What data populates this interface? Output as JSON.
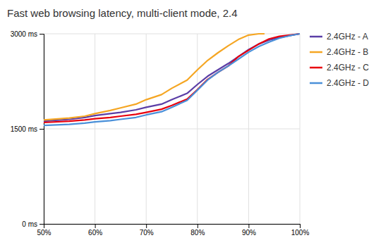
{
  "chart_data": {
    "type": "line",
    "title": "Fast web browsing latency, multi-client mode, 2.4",
    "xlim": [
      0.5,
      1.0
    ],
    "ylim": [
      0,
      3000
    ],
    "xticks": [
      {
        "value": 0.5,
        "label": "50%"
      },
      {
        "value": 0.6,
        "label": "60%"
      },
      {
        "value": 0.7,
        "label": "70%"
      },
      {
        "value": 0.8,
        "label": "80%"
      },
      {
        "value": 0.9,
        "label": "90%"
      },
      {
        "value": 1.0,
        "label": "100%"
      }
    ],
    "yticks": [
      {
        "value": 0,
        "label": "0 ms"
      },
      {
        "value": 1500,
        "label": "1500 ms"
      },
      {
        "value": 3000,
        "label": "3000 ms"
      }
    ],
    "grid": true,
    "legend": "right",
    "series": [
      {
        "name": "2.4GHz - A",
        "color": "#5b3ea6",
        "x": [
          0.5,
          0.55,
          0.58,
          0.6,
          0.63,
          0.65,
          0.68,
          0.7,
          0.73,
          0.75,
          0.78,
          0.8,
          0.82,
          0.84,
          0.86,
          0.88,
          0.9,
          0.92,
          0.94,
          0.96,
          0.98,
          1.0
        ],
        "values": [
          1620,
          1650,
          1680,
          1710,
          1740,
          1760,
          1800,
          1840,
          1890,
          1960,
          2060,
          2200,
          2330,
          2430,
          2530,
          2640,
          2750,
          2840,
          2900,
          2940,
          2970,
          3000
        ]
      },
      {
        "name": "2.4GHz - B",
        "color": "#f5a623",
        "x": [
          0.5,
          0.55,
          0.58,
          0.6,
          0.63,
          0.65,
          0.68,
          0.7,
          0.73,
          0.75,
          0.78,
          0.8,
          0.82,
          0.84,
          0.86,
          0.88,
          0.9,
          0.92,
          0.93
        ],
        "values": [
          1640,
          1670,
          1700,
          1740,
          1790,
          1830,
          1890,
          1960,
          2040,
          2140,
          2270,
          2430,
          2580,
          2700,
          2810,
          2910,
          2980,
          3000,
          3000
        ]
      },
      {
        "name": "2.4GHz - C",
        "color": "#e8000d",
        "x": [
          0.5,
          0.55,
          0.58,
          0.6,
          0.63,
          0.65,
          0.68,
          0.7,
          0.73,
          0.75,
          0.78,
          0.8,
          0.82,
          0.84,
          0.86,
          0.88,
          0.9,
          0.92,
          0.94,
          0.96,
          0.98,
          1.0
        ],
        "values": [
          1600,
          1620,
          1640,
          1660,
          1680,
          1700,
          1730,
          1760,
          1810,
          1870,
          1970,
          2120,
          2280,
          2390,
          2490,
          2640,
          2740,
          2840,
          2920,
          2960,
          2980,
          3000
        ]
      },
      {
        "name": "2.4GHz - D",
        "color": "#4a90d9",
        "x": [
          0.5,
          0.55,
          0.58,
          0.6,
          0.63,
          0.65,
          0.68,
          0.7,
          0.73,
          0.75,
          0.78,
          0.8,
          0.82,
          0.84,
          0.86,
          0.88,
          0.9,
          0.92,
          0.94,
          0.96,
          0.98,
          1.0
        ],
        "values": [
          1555,
          1570,
          1590,
          1610,
          1630,
          1650,
          1680,
          1720,
          1770,
          1840,
          1950,
          2110,
          2270,
          2390,
          2490,
          2600,
          2710,
          2800,
          2870,
          2930,
          2970,
          3000
        ]
      }
    ]
  }
}
